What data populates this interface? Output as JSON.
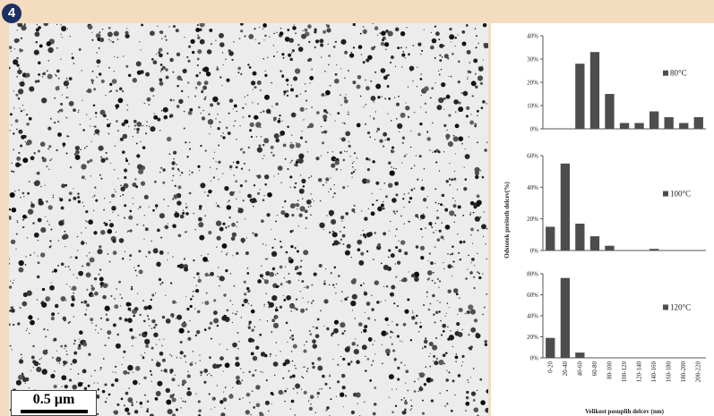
{
  "figure": {
    "number": "4",
    "scale_bar_label": "0.5 µm",
    "colors": {
      "background": "#f3dcbf",
      "badge": "#1c2f63",
      "bar": "#4d4d4d"
    }
  },
  "chart_data": [
    {
      "type": "bar",
      "categories": [
        "0-20",
        "20-40",
        "40-60",
        "60-80",
        "80-100",
        "100-120",
        "120-140",
        "140-160",
        "160-180",
        "180-200",
        "200-220"
      ],
      "series": [
        {
          "name": "80°C",
          "values": [
            0,
            0,
            28,
            33,
            15,
            2.5,
            2.5,
            7.5,
            5,
            2.5,
            5
          ]
        }
      ],
      "yticks": [
        "0%",
        "10%",
        "20%",
        "30%",
        "40%"
      ],
      "ylim": [
        0,
        40
      ],
      "legend_position": "right"
    },
    {
      "type": "bar",
      "categories": [
        "0-20",
        "20-40",
        "40-60",
        "60-80",
        "80-100",
        "100-120",
        "120-140",
        "140-160",
        "160-180",
        "180-200",
        "200-220"
      ],
      "series": [
        {
          "name": "100°C",
          "values": [
            15,
            55,
            17,
            9,
            3,
            0,
            0,
            1,
            0,
            0,
            0
          ]
        }
      ],
      "yticks": [
        "0%",
        "20%",
        "40%",
        "60%"
      ],
      "ylim": [
        0,
        60
      ],
      "legend_position": "right"
    },
    {
      "type": "bar",
      "categories": [
        "0-20",
        "20-40",
        "40-60",
        "60-80",
        "80-100",
        "100-120",
        "120-140",
        "140-160",
        "160-180",
        "180-200",
        "200-220"
      ],
      "series": [
        {
          "name": "120°C",
          "values": [
            19,
            76,
            5,
            0,
            0,
            0,
            0,
            0,
            0,
            0,
            0
          ]
        }
      ],
      "yticks": [
        "0%",
        "20%",
        "40%",
        "60%",
        "80%"
      ],
      "ylim": [
        0,
        80
      ],
      "legend_position": "right",
      "xlabel": "Velikost posuplih delcev (nm)"
    }
  ],
  "shared_ylabel": "Odstotek prešteth delcev(%)"
}
